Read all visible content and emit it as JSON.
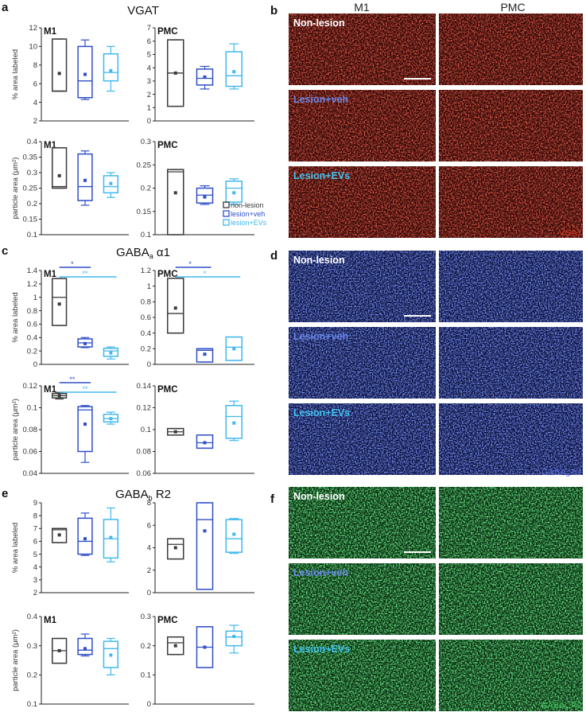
{
  "figure_labels": {
    "a": "a",
    "b": "b",
    "c": "c",
    "d": "d",
    "e": "e",
    "f": "f"
  },
  "section_titles": {
    "vgat": "VGAT",
    "gaba_a": "GABA",
    "gaba_a_sub": "a",
    "gaba_a_suffix": " α1",
    "gaba_b": "GABA",
    "gaba_b_sub": "b",
    "gaba_b_suffix": " R2"
  },
  "image_columns": {
    "m1": "M1",
    "pmc": "PMC"
  },
  "image_panel_labels": [
    "Non-lesion",
    "Lesion+veh",
    "Lesion+EVs"
  ],
  "image_stain_labels": {
    "b": "VGAT",
    "d_main": "GABA",
    "d_sub": "a",
    "d_suffix": " α1",
    "f_main": "GABA",
    "f_sub": "b",
    "f_suffix": " R2"
  },
  "colors": {
    "non_lesion": "#3a3a3a",
    "lesion_veh": "#2f4fc8",
    "lesion_evs": "#41b8ef",
    "red_stain": "#c8261c",
    "blue_stain": "#3a4fd0",
    "green_stain": "#2fb14a"
  },
  "legend": [
    "non-lesion",
    "lesion+veh",
    "lesion+EVs"
  ],
  "chart_data": [
    {
      "id": "a_m1",
      "type": "box",
      "title": "M1",
      "ylabel": "% area labeled",
      "ylim": [
        2,
        12
      ],
      "yticks": [
        2,
        4,
        6,
        8,
        10,
        12
      ],
      "series": [
        {
          "name": "non-lesion",
          "q1": 5.2,
          "median": 5.2,
          "q3": 10.8,
          "min": 5.2,
          "max": 10.8,
          "mean": 7.1
        },
        {
          "name": "lesion+veh",
          "q1": 4.5,
          "median": 6.3,
          "q3": 10.0,
          "min": 4.3,
          "max": 10.7,
          "mean": 7.0
        },
        {
          "name": "lesion+EVs",
          "q1": 6.3,
          "median": 7.2,
          "q3": 9.2,
          "min": 5.2,
          "max": 10.0,
          "mean": 7.4
        }
      ]
    },
    {
      "id": "a_pmc",
      "type": "box",
      "title": "PMC",
      "ylabel": "",
      "ylim": [
        0,
        7
      ],
      "yticks": [
        0,
        1,
        2,
        3,
        4,
        5,
        6,
        7
      ],
      "series": [
        {
          "name": "non-lesion",
          "q1": 1.1,
          "median": 3.6,
          "q3": 6.1,
          "min": 1.1,
          "max": 6.1,
          "mean": 3.6
        },
        {
          "name": "lesion+veh",
          "q1": 2.7,
          "median": 3.2,
          "q3": 3.9,
          "min": 2.4,
          "max": 4.1,
          "mean": 3.3
        },
        {
          "name": "lesion+EVs",
          "q1": 2.6,
          "median": 3.4,
          "q3": 5.2,
          "min": 2.4,
          "max": 5.8,
          "mean": 3.7
        }
      ]
    },
    {
      "id": "a_m1_pa",
      "type": "box",
      "title": "M1",
      "ylabel": "particle area (μm²)",
      "ylim": [
        0.1,
        0.4
      ],
      "yticks": [
        0.1,
        0.15,
        0.2,
        0.25,
        0.3,
        0.35,
        0.4
      ],
      "series": [
        {
          "name": "non-lesion",
          "q1": 0.25,
          "median": 0.255,
          "q3": 0.38,
          "min": 0.25,
          "max": 0.38,
          "mean": 0.29
        },
        {
          "name": "lesion+veh",
          "q1": 0.21,
          "median": 0.255,
          "q3": 0.36,
          "min": 0.195,
          "max": 0.37,
          "mean": 0.275
        },
        {
          "name": "lesion+EVs",
          "q1": 0.235,
          "median": 0.255,
          "q3": 0.29,
          "min": 0.22,
          "max": 0.3,
          "mean": 0.265
        }
      ]
    },
    {
      "id": "a_pmc_pa",
      "type": "box",
      "title": "PMC",
      "ylabel": "",
      "ylim": [
        0.1,
        0.3
      ],
      "yticks": [
        0.1,
        0.15,
        0.2,
        0.25,
        0.3
      ],
      "series": [
        {
          "name": "non-lesion",
          "q1": 0.1,
          "median": 0.235,
          "q3": 0.24,
          "min": 0.1,
          "max": 0.24,
          "mean": 0.19
        },
        {
          "name": "lesion+veh",
          "q1": 0.168,
          "median": 0.185,
          "q3": 0.2,
          "min": 0.165,
          "max": 0.205,
          "mean": 0.181
        },
        {
          "name": "lesion+EVs",
          "q1": 0.17,
          "median": 0.2,
          "q3": 0.215,
          "min": 0.165,
          "max": 0.22,
          "mean": 0.19
        }
      ]
    },
    {
      "id": "c_m1",
      "type": "box",
      "title": "M1",
      "ylabel": "% area labeled",
      "ylim": [
        0,
        1.4
      ],
      "yticks": [
        0,
        0.2,
        0.4,
        0.6,
        0.8,
        1,
        1.2,
        1.4
      ],
      "sig": [
        {
          "from": 0,
          "to": 1,
          "label": "*",
          "color": "lesion_veh"
        },
        {
          "from": 0,
          "to": 2,
          "label": "**",
          "color": "lesion_evs"
        }
      ],
      "series": [
        {
          "name": "non-lesion",
          "q1": 0.58,
          "median": 1.0,
          "q3": 1.28,
          "min": 0.58,
          "max": 1.28,
          "mean": 0.9
        },
        {
          "name": "lesion+veh",
          "q1": 0.26,
          "median": 0.32,
          "q3": 0.38,
          "min": 0.25,
          "max": 0.4,
          "mean": 0.31
        },
        {
          "name": "lesion+EVs",
          "q1": 0.12,
          "median": 0.2,
          "q3": 0.24,
          "min": 0.08,
          "max": 0.26,
          "mean": 0.17
        }
      ]
    },
    {
      "id": "c_pmc",
      "type": "box",
      "title": "PMC",
      "ylabel": "",
      "ylim": [
        0,
        1.2
      ],
      "yticks": [
        0,
        0.2,
        0.4,
        0.6,
        0.8,
        1,
        1.2
      ],
      "sig": [
        {
          "from": 0,
          "to": 1,
          "label": "*",
          "color": "lesion_veh"
        },
        {
          "from": 0,
          "to": 2,
          "label": "*",
          "color": "lesion_evs"
        }
      ],
      "series": [
        {
          "name": "non-lesion",
          "q1": 0.4,
          "median": 0.65,
          "q3": 1.1,
          "min": 0.4,
          "max": 1.1,
          "mean": 0.72
        },
        {
          "name": "lesion+veh",
          "q1": 0.03,
          "median": 0.18,
          "q3": 0.2,
          "min": 0.03,
          "max": 0.2,
          "mean": 0.13
        },
        {
          "name": "lesion+EVs",
          "q1": 0.05,
          "median": 0.22,
          "q3": 0.35,
          "min": 0.05,
          "max": 0.35,
          "mean": 0.2
        }
      ]
    },
    {
      "id": "c_m1_pa",
      "type": "box",
      "title": "M1",
      "ylabel": "particle area (μm²)",
      "ylim": [
        0.04,
        0.12
      ],
      "yticks": [
        0.04,
        0.06,
        0.08,
        0.1,
        0.12
      ],
      "sig": [
        {
          "from": 0,
          "to": 1,
          "label": "**",
          "color": "lesion_veh"
        },
        {
          "from": 0,
          "to": 2,
          "label": "**",
          "color": "lesion_evs"
        }
      ],
      "series": [
        {
          "name": "non-lesion",
          "q1": 0.109,
          "median": 0.111,
          "q3": 0.113,
          "min": 0.108,
          "max": 0.114,
          "mean": 0.111
        },
        {
          "name": "lesion+veh",
          "q1": 0.06,
          "median": 0.098,
          "q3": 0.101,
          "min": 0.05,
          "max": 0.102,
          "mean": 0.085
        },
        {
          "name": "lesion+EVs",
          "q1": 0.087,
          "median": 0.09,
          "q3": 0.094,
          "min": 0.085,
          "max": 0.096,
          "mean": 0.09
        }
      ]
    },
    {
      "id": "c_pmc_pa",
      "type": "box",
      "title": "PMC",
      "ylabel": "",
      "ylim": [
        0.06,
        0.14
      ],
      "yticks": [
        0.06,
        0.08,
        0.1,
        0.12,
        0.14
      ],
      "series": [
        {
          "name": "non-lesion",
          "q1": 0.095,
          "median": 0.098,
          "q3": 0.101,
          "min": 0.095,
          "max": 0.101,
          "mean": 0.098
        },
        {
          "name": "lesion+veh",
          "q1": 0.083,
          "median": 0.088,
          "q3": 0.095,
          "min": 0.083,
          "max": 0.095,
          "mean": 0.088
        },
        {
          "name": "lesion+EVs",
          "q1": 0.092,
          "median": 0.112,
          "q3": 0.122,
          "min": 0.09,
          "max": 0.126,
          "mean": 0.106
        }
      ]
    },
    {
      "id": "e_m1",
      "type": "box",
      "title": "",
      "ylabel": "% area labeled",
      "ylim": [
        2,
        9
      ],
      "yticks": [
        2,
        3,
        4,
        5,
        6,
        7,
        8,
        9
      ],
      "series": [
        {
          "name": "non-lesion",
          "q1": 5.9,
          "median": 6.9,
          "q3": 7.0,
          "min": 5.9,
          "max": 7.0,
          "mean": 6.5
        },
        {
          "name": "lesion+veh",
          "q1": 5.0,
          "median": 6.0,
          "q3": 7.8,
          "min": 4.9,
          "max": 8.2,
          "mean": 6.2
        },
        {
          "name": "lesion+EVs",
          "q1": 4.7,
          "median": 6.2,
          "q3": 7.7,
          "min": 4.4,
          "max": 8.6,
          "mean": 6.3
        }
      ]
    },
    {
      "id": "e_pmc",
      "type": "box",
      "title": "",
      "ylabel": "",
      "ylim": [
        0,
        8
      ],
      "yticks": [
        0,
        2,
        4,
        6,
        8
      ],
      "series": [
        {
          "name": "non-lesion",
          "q1": 3.0,
          "median": 4.3,
          "q3": 4.8,
          "min": 3.0,
          "max": 4.8,
          "mean": 4.0
        },
        {
          "name": "lesion+veh",
          "q1": 0.3,
          "median": 6.5,
          "q3": 8.0,
          "min": 0.3,
          "max": 8.0,
          "mean": 5.5
        },
        {
          "name": "lesion+EVs",
          "q1": 3.6,
          "median": 4.8,
          "q3": 6.5,
          "min": 3.5,
          "max": 6.6,
          "mean": 5.2
        }
      ]
    },
    {
      "id": "e_m1_pa",
      "type": "box",
      "title": "M1",
      "ylabel": "particle area (μm²)",
      "ylim": [
        0.1,
        0.4
      ],
      "yticks": [
        0.1,
        0.2,
        0.3,
        0.4
      ],
      "series": [
        {
          "name": "non-lesion",
          "q1": 0.24,
          "median": 0.283,
          "q3": 0.325,
          "min": 0.24,
          "max": 0.325,
          "mean": 0.283
        },
        {
          "name": "lesion+veh",
          "q1": 0.27,
          "median": 0.285,
          "q3": 0.325,
          "min": 0.265,
          "max": 0.34,
          "mean": 0.29
        },
        {
          "name": "lesion+EVs",
          "q1": 0.225,
          "median": 0.29,
          "q3": 0.315,
          "min": 0.2,
          "max": 0.325,
          "mean": 0.268
        }
      ]
    },
    {
      "id": "e_pmc_pa",
      "type": "box",
      "title": "PMC",
      "ylabel": "",
      "ylim": [
        0,
        0.3
      ],
      "yticks": [
        0,
        0.1,
        0.2,
        0.3
      ],
      "series": [
        {
          "name": "non-lesion",
          "q1": 0.17,
          "median": 0.21,
          "q3": 0.23,
          "min": 0.17,
          "max": 0.23,
          "mean": 0.2
        },
        {
          "name": "lesion+veh",
          "q1": 0.125,
          "median": 0.195,
          "q3": 0.265,
          "min": 0.125,
          "max": 0.265,
          "mean": 0.195
        },
        {
          "name": "lesion+EVs",
          "q1": 0.2,
          "median": 0.23,
          "q3": 0.25,
          "min": 0.175,
          "max": 0.27,
          "mean": 0.232
        }
      ]
    }
  ]
}
